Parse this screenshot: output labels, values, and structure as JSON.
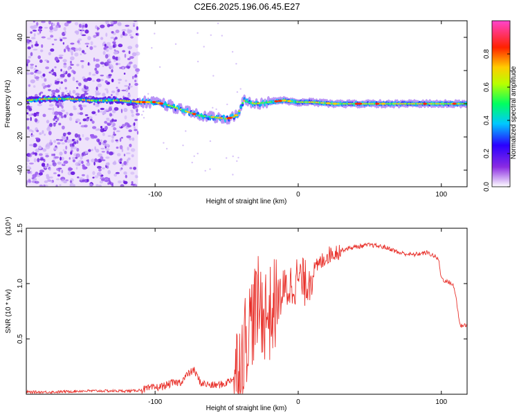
{
  "title": "C2E6.2025.196.06.45.E27",
  "chart_data": [
    {
      "type": "heatmap",
      "xlabel": "Height of straight line (km)",
      "ylabel": "Frequency (Hz)",
      "xlim": [
        -190,
        118
      ],
      "ylim": [
        -50,
        50
      ],
      "xticks": [
        -100,
        0,
        100
      ],
      "yticks": [
        40,
        20,
        0,
        -20,
        -40
      ],
      "colorbar": {
        "label": "Normalized spectral amplitude",
        "range": [
          0,
          1
        ],
        "ticks": [
          0.0,
          0.2,
          0.4,
          0.6,
          0.8
        ]
      },
      "band_center": [
        [
          -190,
          2
        ],
        [
          -175,
          3
        ],
        [
          -160,
          3
        ],
        [
          -145,
          2
        ],
        [
          -125,
          2
        ],
        [
          -110,
          1
        ],
        [
          -100,
          1
        ],
        [
          -90,
          -1
        ],
        [
          -80,
          -4
        ],
        [
          -70,
          -7
        ],
        [
          -60,
          -8
        ],
        [
          -50,
          -9
        ],
        [
          -45,
          -8
        ],
        [
          -42,
          -6
        ],
        [
          -40,
          -2
        ],
        [
          -38,
          2
        ],
        [
          -35,
          1
        ],
        [
          -30,
          0
        ],
        [
          -20,
          1
        ],
        [
          -10,
          2
        ],
        [
          0,
          1
        ],
        [
          10,
          1
        ],
        [
          25,
          0
        ],
        [
          50,
          0
        ],
        [
          75,
          0
        ],
        [
          100,
          0
        ],
        [
          118,
          0
        ]
      ],
      "noise_region_x": [
        -190,
        -112
      ],
      "noise_level": "high"
    },
    {
      "type": "line",
      "xlabel": "Height of straight line (km)",
      "ylabel": "SNR (10 * v/v)",
      "y_multiplier": "(x10⁴)",
      "xlim": [
        -190,
        118
      ],
      "ylim": [
        0,
        1.5
      ],
      "xticks": [
        -100,
        0,
        100
      ],
      "yticks": [
        0.5,
        1.0,
        1.5
      ],
      "color": "#e8302a",
      "series": [
        {
          "x": [
            -190,
            -170,
            -150,
            -130,
            -115,
            -105,
            -95,
            -88,
            -82,
            -78,
            -73,
            -68,
            -60,
            -52,
            -45,
            -40,
            -36,
            -32,
            -28,
            -24,
            -20,
            -16,
            -12,
            -8,
            -4,
            0,
            5,
            10,
            15,
            20,
            25,
            30,
            35,
            40,
            45,
            50,
            55,
            60,
            65,
            70,
            75,
            80,
            85,
            90,
            95,
            98,
            100,
            103,
            106,
            108,
            110,
            113,
            118
          ],
          "y": [
            0.02,
            0.02,
            0.03,
            0.03,
            0.03,
            0.05,
            0.07,
            0.1,
            0.11,
            0.17,
            0.22,
            0.1,
            0.08,
            0.09,
            0.15,
            0.32,
            0.55,
            0.7,
            0.8,
            0.75,
            0.72,
            0.8,
            0.9,
            0.95,
            1.0,
            1.05,
            1.0,
            1.1,
            1.18,
            1.25,
            1.28,
            1.3,
            1.32,
            1.33,
            1.34,
            1.35,
            1.34,
            1.33,
            1.31,
            1.28,
            1.27,
            1.26,
            1.27,
            1.28,
            1.25,
            1.22,
            1.05,
            1.02,
            1.01,
            0.99,
            0.9,
            0.62,
            0.63
          ]
        }
      ]
    }
  ]
}
